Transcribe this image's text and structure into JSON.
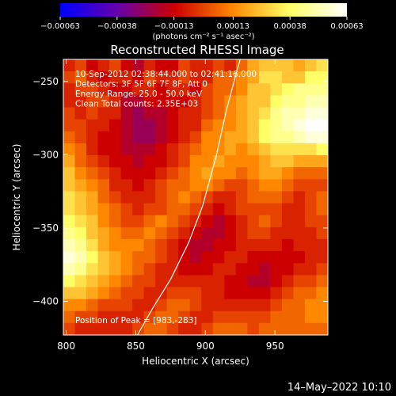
{
  "chart_data": {
    "type": "heatmap",
    "title": "Reconstructed RHESSI Image",
    "xlabel": "Heliocentric X (arcsec)",
    "ylabel": "Heliocentric Y (arcsec)",
    "xlim": [
      798,
      988
    ],
    "ylim": [
      -423,
      -235
    ],
    "x_ticks": [
      800,
      850,
      900,
      950
    ],
    "x_tick_labels": [
      "800",
      "850",
      "900",
      "950"
    ],
    "y_ticks": [
      -250,
      -300,
      -350,
      -400
    ],
    "y_tick_labels": [
      "−250",
      "−300",
      "−350",
      "−400"
    ],
    "colorbar": {
      "min": -0.00063,
      "max": 0.00063,
      "ticks": [
        -0.00063,
        -0.00038,
        -0.00013,
        0.00013,
        0.00038,
        0.00063
      ],
      "tick_labels": [
        "−0.00063",
        "−0.00038",
        "−0.00013",
        "0.00013",
        "0.00038",
        "0.00063"
      ],
      "unit": "(photons cm⁻² s⁻¹ asec⁻²)",
      "colors": [
        "#0000ff",
        "#6600aa",
        "#cc0000",
        "#ff8800",
        "#ffff66",
        "#ffffff"
      ]
    },
    "annotations": [
      "10-Sep-2012 02:38:44.000 to 02:41:16.000",
      "Detectors: 3F 5F 6F 7F 8F, Att 0",
      "Energy Range: 25.0 - 50.0 keV",
      "Clean     Total counts: 2.35E+03"
    ],
    "peak_label": "Position of Peak = [983,-283]",
    "peak": [
      983,
      -283
    ],
    "limb_curve": [
      [
        850,
        -425
      ],
      [
        862,
        -405
      ],
      [
        875,
        -385
      ],
      [
        888,
        -360
      ],
      [
        898,
        -335
      ],
      [
        908,
        -300
      ],
      [
        915,
        -270
      ],
      [
        922,
        -245
      ],
      [
        925,
        -235
      ]
    ],
    "intensity_grid": [
      [
        0.45,
        0.5,
        0.4,
        0.45,
        0.5,
        0.4,
        0.35,
        0.45,
        0.4,
        0.4,
        0.5,
        0.45,
        0.45,
        0.5,
        0.45,
        0.55,
        0.65,
        0.7,
        0.7,
        0.7,
        0.65,
        0.7,
        0.75
      ],
      [
        0.5,
        0.55,
        0.45,
        0.4,
        0.45,
        0.45,
        0.4,
        0.5,
        0.45,
        0.45,
        0.5,
        0.45,
        0.45,
        0.55,
        0.55,
        0.6,
        0.65,
        0.75,
        0.75,
        0.7,
        0.7,
        0.8,
        0.8
      ],
      [
        0.45,
        0.5,
        0.5,
        0.45,
        0.4,
        0.4,
        0.45,
        0.45,
        0.4,
        0.45,
        0.45,
        0.4,
        0.5,
        0.55,
        0.55,
        0.6,
        0.7,
        0.7,
        0.75,
        0.8,
        0.85,
        0.85,
        0.85
      ],
      [
        0.45,
        0.45,
        0.5,
        0.5,
        0.45,
        0.35,
        0.35,
        0.4,
        0.4,
        0.4,
        0.4,
        0.45,
        0.5,
        0.55,
        0.6,
        0.65,
        0.7,
        0.7,
        0.8,
        0.85,
        0.85,
        0.9,
        0.9
      ],
      [
        0.5,
        0.45,
        0.5,
        0.45,
        0.45,
        0.35,
        0.3,
        0.35,
        0.35,
        0.4,
        0.45,
        0.45,
        0.5,
        0.55,
        0.6,
        0.65,
        0.7,
        0.75,
        0.85,
        0.9,
        0.9,
        0.95,
        0.95
      ],
      [
        0.5,
        0.5,
        0.45,
        0.45,
        0.4,
        0.35,
        0.3,
        0.3,
        0.35,
        0.4,
        0.45,
        0.45,
        0.55,
        0.6,
        0.6,
        0.65,
        0.7,
        0.8,
        0.85,
        0.9,
        0.95,
        1.0,
        1.0
      ],
      [
        0.55,
        0.5,
        0.45,
        0.4,
        0.4,
        0.35,
        0.3,
        0.3,
        0.35,
        0.4,
        0.45,
        0.5,
        0.6,
        0.6,
        0.65,
        0.65,
        0.7,
        0.8,
        0.85,
        0.85,
        0.9,
        0.95,
        0.95
      ],
      [
        0.6,
        0.55,
        0.45,
        0.4,
        0.4,
        0.35,
        0.35,
        0.35,
        0.4,
        0.45,
        0.5,
        0.55,
        0.6,
        0.6,
        0.65,
        0.6,
        0.65,
        0.7,
        0.75,
        0.75,
        0.75,
        0.75,
        0.8
      ],
      [
        0.65,
        0.55,
        0.5,
        0.45,
        0.4,
        0.4,
        0.35,
        0.4,
        0.4,
        0.45,
        0.5,
        0.6,
        0.6,
        0.65,
        0.6,
        0.6,
        0.6,
        0.65,
        0.7,
        0.7,
        0.65,
        0.65,
        0.65
      ],
      [
        0.7,
        0.6,
        0.55,
        0.5,
        0.45,
        0.4,
        0.4,
        0.4,
        0.45,
        0.5,
        0.55,
        0.6,
        0.65,
        0.6,
        0.6,
        0.55,
        0.6,
        0.65,
        0.65,
        0.6,
        0.55,
        0.55,
        0.55
      ],
      [
        0.7,
        0.65,
        0.6,
        0.55,
        0.45,
        0.45,
        0.4,
        0.45,
        0.5,
        0.55,
        0.55,
        0.6,
        0.6,
        0.55,
        0.5,
        0.5,
        0.55,
        0.6,
        0.6,
        0.55,
        0.5,
        0.5,
        0.5
      ],
      [
        0.75,
        0.7,
        0.65,
        0.55,
        0.5,
        0.45,
        0.45,
        0.45,
        0.5,
        0.55,
        0.6,
        0.55,
        0.5,
        0.45,
        0.45,
        0.5,
        0.55,
        0.55,
        0.55,
        0.5,
        0.45,
        0.5,
        0.55
      ],
      [
        0.75,
        0.7,
        0.65,
        0.6,
        0.55,
        0.5,
        0.45,
        0.5,
        0.5,
        0.55,
        0.55,
        0.5,
        0.45,
        0.4,
        0.45,
        0.5,
        0.5,
        0.5,
        0.5,
        0.45,
        0.45,
        0.5,
        0.55
      ],
      [
        0.8,
        0.75,
        0.7,
        0.6,
        0.55,
        0.5,
        0.5,
        0.55,
        0.6,
        0.55,
        0.5,
        0.45,
        0.4,
        0.35,
        0.4,
        0.45,
        0.5,
        0.55,
        0.5,
        0.45,
        0.45,
        0.5,
        0.5
      ],
      [
        0.85,
        0.8,
        0.7,
        0.65,
        0.6,
        0.55,
        0.55,
        0.6,
        0.55,
        0.5,
        0.45,
        0.4,
        0.35,
        0.35,
        0.4,
        0.45,
        0.5,
        0.5,
        0.45,
        0.45,
        0.45,
        0.45,
        0.5
      ],
      [
        0.9,
        0.85,
        0.75,
        0.65,
        0.6,
        0.6,
        0.6,
        0.55,
        0.5,
        0.45,
        0.4,
        0.35,
        0.35,
        0.4,
        0.4,
        0.45,
        0.45,
        0.45,
        0.45,
        0.4,
        0.45,
        0.45,
        0.45
      ],
      [
        0.95,
        0.9,
        0.8,
        0.7,
        0.65,
        0.6,
        0.55,
        0.55,
        0.5,
        0.45,
        0.4,
        0.35,
        0.4,
        0.4,
        0.45,
        0.45,
        0.4,
        0.4,
        0.4,
        0.4,
        0.4,
        0.45,
        0.45
      ],
      [
        0.9,
        0.85,
        0.75,
        0.7,
        0.65,
        0.6,
        0.55,
        0.5,
        0.45,
        0.45,
        0.4,
        0.4,
        0.4,
        0.45,
        0.45,
        0.4,
        0.4,
        0.35,
        0.4,
        0.4,
        0.45,
        0.45,
        0.5
      ],
      [
        0.8,
        0.75,
        0.7,
        0.65,
        0.6,
        0.55,
        0.5,
        0.5,
        0.45,
        0.45,
        0.45,
        0.45,
        0.45,
        0.45,
        0.4,
        0.4,
        0.35,
        0.35,
        0.4,
        0.45,
        0.5,
        0.5,
        0.55
      ],
      [
        0.7,
        0.7,
        0.65,
        0.6,
        0.55,
        0.5,
        0.5,
        0.45,
        0.45,
        0.5,
        0.5,
        0.5,
        0.45,
        0.45,
        0.4,
        0.4,
        0.4,
        0.4,
        0.45,
        0.5,
        0.55,
        0.55,
        0.6
      ],
      [
        0.6,
        0.6,
        0.55,
        0.5,
        0.5,
        0.5,
        0.45,
        0.45,
        0.5,
        0.55,
        0.55,
        0.5,
        0.45,
        0.45,
        0.45,
        0.45,
        0.45,
        0.45,
        0.5,
        0.55,
        0.55,
        0.6,
        0.6
      ],
      [
        0.55,
        0.5,
        0.5,
        0.45,
        0.45,
        0.45,
        0.45,
        0.5,
        0.55,
        0.55,
        0.5,
        0.45,
        0.45,
        0.5,
        0.5,
        0.5,
        0.5,
        0.5,
        0.55,
        0.55,
        0.55,
        0.6,
        0.6
      ],
      [
        0.5,
        0.45,
        0.45,
        0.45,
        0.45,
        0.45,
        0.5,
        0.55,
        0.55,
        0.5,
        0.45,
        0.45,
        0.5,
        0.55,
        0.55,
        0.55,
        0.5,
        0.55,
        0.55,
        0.55,
        0.55,
        0.55,
        0.55
      ]
    ]
  },
  "timestamp": "14–May–2022 10:10"
}
